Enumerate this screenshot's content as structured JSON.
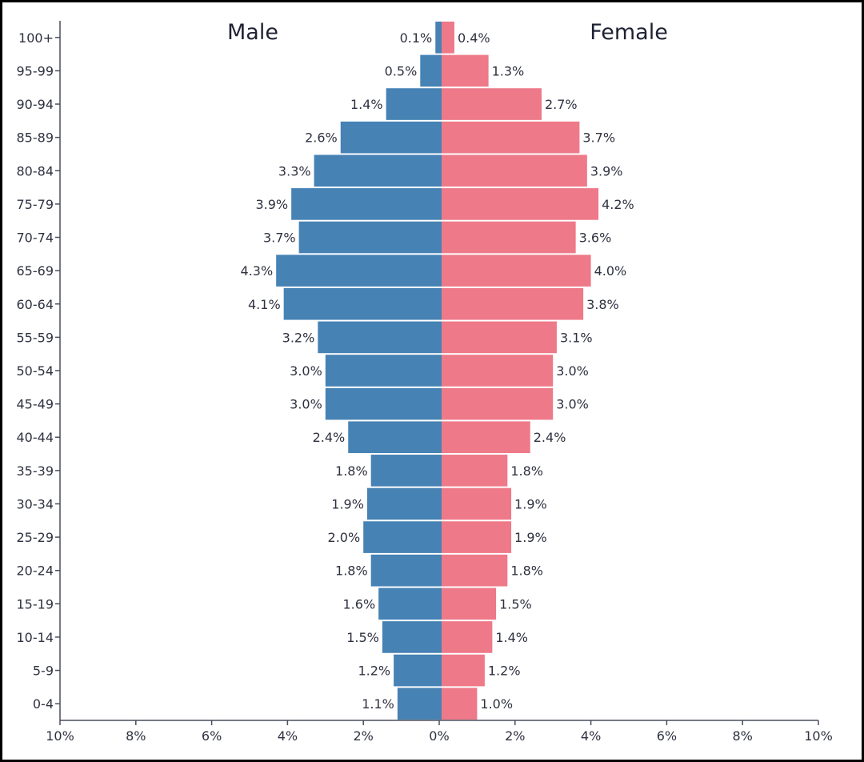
{
  "chart_data": {
    "type": "bar",
    "orientation": "horizontal",
    "layout": "population-pyramid",
    "title": "",
    "left_label": "Male",
    "right_label": "Female",
    "categories": [
      "0-4",
      "5-9",
      "10-14",
      "15-19",
      "20-24",
      "25-29",
      "30-34",
      "35-39",
      "40-44",
      "45-49",
      "50-54",
      "55-59",
      "60-64",
      "65-69",
      "70-74",
      "75-79",
      "80-84",
      "85-89",
      "90-94",
      "95-99",
      "100+"
    ],
    "series": [
      {
        "name": "Male",
        "side": "left",
        "color": "#4682b4",
        "values": [
          1.1,
          1.2,
          1.5,
          1.6,
          1.8,
          2.0,
          1.9,
          1.8,
          2.4,
          3.0,
          3.0,
          3.2,
          4.1,
          4.3,
          3.7,
          3.9,
          3.3,
          2.6,
          1.4,
          0.5,
          0.1
        ],
        "labels": [
          "1.1%",
          "1.2%",
          "1.5%",
          "1.6%",
          "1.8%",
          "2.0%",
          "1.9%",
          "1.8%",
          "2.4%",
          "3.0%",
          "3.0%",
          "3.2%",
          "4.1%",
          "4.3%",
          "3.7%",
          "3.9%",
          "3.3%",
          "2.6%",
          "1.4%",
          "0.5%",
          "0.1%"
        ]
      },
      {
        "name": "Female",
        "side": "right",
        "color": "#ee7989",
        "values": [
          1.0,
          1.2,
          1.4,
          1.5,
          1.8,
          1.9,
          1.9,
          1.8,
          2.4,
          3.0,
          3.0,
          3.1,
          3.8,
          4.0,
          3.6,
          4.2,
          3.9,
          3.7,
          2.7,
          1.3,
          0.4
        ],
        "labels": [
          "1.0%",
          "1.2%",
          "1.4%",
          "1.5%",
          "1.8%",
          "1.9%",
          "1.9%",
          "1.8%",
          "2.4%",
          "3.0%",
          "3.0%",
          "3.1%",
          "3.8%",
          "4.0%",
          "3.6%",
          "4.2%",
          "3.9%",
          "3.7%",
          "2.7%",
          "1.3%",
          "0.4%"
        ]
      }
    ],
    "xlim": [
      -10,
      10
    ],
    "x_ticks": [
      -10,
      -8,
      -6,
      -4,
      -2,
      0,
      2,
      4,
      6,
      8,
      10
    ],
    "x_tick_labels": [
      "10%",
      "8%",
      "6%",
      "4%",
      "2%",
      "0%",
      "2%",
      "4%",
      "6%",
      "8%",
      "10%"
    ],
    "xlabel": "",
    "ylabel": "",
    "grid": false,
    "legend": "none"
  }
}
